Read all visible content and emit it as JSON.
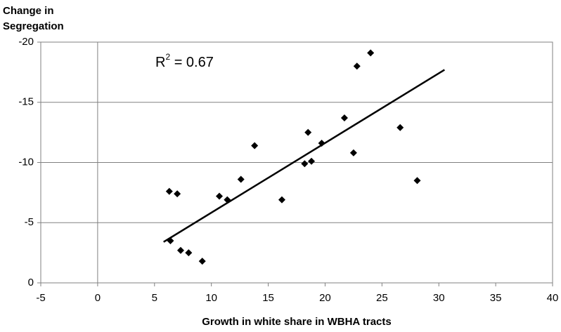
{
  "chart_data": {
    "type": "scatter",
    "y_label": [
      "Change in",
      "Segregation"
    ],
    "x_label": "Growth in white share in WBHA tracts",
    "annotation": {
      "base": "R",
      "sup": "2",
      "rest": " = 0.67"
    },
    "x": [
      6.3,
      7.0,
      6.4,
      7.3,
      8.0,
      9.2,
      10.7,
      11.4,
      12.6,
      13.8,
      16.2,
      18.2,
      18.5,
      18.8,
      19.7,
      21.7,
      22.5,
      22.8,
      24.0,
      26.6,
      28.1
    ],
    "series": [
      {
        "color": "#000000",
        "values": [
          -7.6,
          -7.4,
          -3.5,
          -2.7,
          -2.5,
          -1.8,
          -7.2,
          -6.9,
          -8.6,
          -11.4,
          -6.9,
          -9.9,
          -12.5,
          -10.1,
          -11.6,
          -13.7,
          -10.8,
          -18.0,
          -19.1,
          -12.9,
          -8.5
        ]
      }
    ],
    "trendline": {
      "x": [
        5.8,
        30.5
      ],
      "y": [
        -3.4,
        -17.7
      ],
      "color": "#000000"
    },
    "xlim": [
      -5,
      40
    ],
    "xticks": [
      -5,
      0,
      5,
      10,
      15,
      20,
      25,
      30,
      35,
      40
    ],
    "ylim": [
      0,
      -20
    ],
    "yticks": [
      -20,
      -15,
      -10,
      -5,
      0
    ],
    "grid": true
  }
}
